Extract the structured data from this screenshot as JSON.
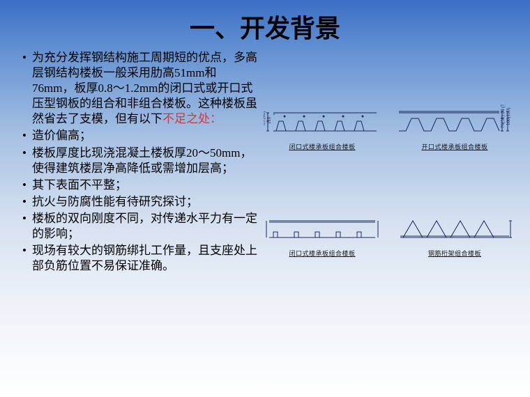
{
  "title": "一、开发背景",
  "bullets": [
    {
      "text_html": "为充分发挥钢结构施工周期短的优点，多高层钢结构楼板一般采用肋高51mm和76mm，板厚0.8～1.2mm的闭口式或开口式压型钢板的组合和非组合楼板。这种楼板虽然省去了支模，但有以下<span class='highlight'>不足之处：</span>"
    },
    {
      "text": "造价偏高；"
    },
    {
      "text": "楼板厚度比现浇混凝土楼板厚20～50mm，使得建筑楼层净高降低或需增加层高；"
    },
    {
      "text": "其下表面不平整；"
    },
    {
      "text": "抗火与防腐性能有待研究探讨；"
    },
    {
      "text": "楼板的双向刚度不同，对传递水平力有一定的影响；"
    },
    {
      "text": "现场有较大的钢筋绑扎工作量，且支座处上部负筋位置不易保证准确。"
    }
  ],
  "diagrams": {
    "row1": [
      {
        "caption": "闭口式楼承板组合楼板",
        "type": "closed-deck",
        "profile_color": "#1a2a5a",
        "dim_left_1": "65 (40)",
        "dim_left_2": "110"
      },
      {
        "caption": "开口式楼承板组合楼板",
        "type": "open-deck",
        "profile_color": "#1a2a5a",
        "dim_right_1": "76(51) 24 (54)",
        "dim_right_2": "100(110)"
      }
    ],
    "row2": [
      {
        "caption": "闭口式楼承板组合楼板",
        "type": "closed-deck-2",
        "profile_color": "#1a2a5a"
      },
      {
        "caption": "钢筋桁架组合楼板",
        "type": "truss-deck",
        "profile_color": "#1a2a5a"
      }
    ]
  },
  "colors": {
    "highlight": "#d93636",
    "stroke": "#1a2a5a"
  }
}
